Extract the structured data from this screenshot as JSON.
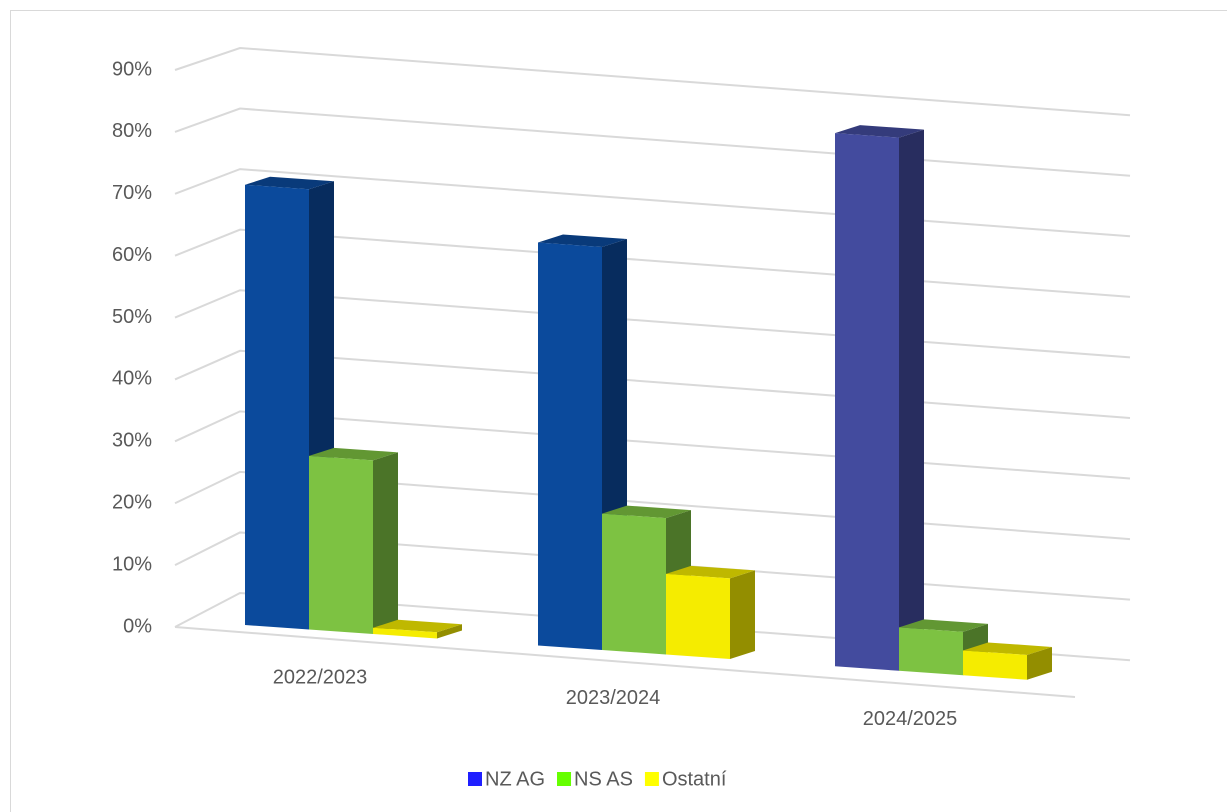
{
  "chart_data": {
    "type": "bar3d",
    "categories": [
      "2022/2023",
      "2023/2024",
      "2024/2025"
    ],
    "series": [
      {
        "name": "NZ AG",
        "color": "#1f1fff",
        "colors": [
          "#0b4a9c",
          "#0b4a9c",
          "#434b9e"
        ],
        "values": [
          71,
          65,
          86
        ]
      },
      {
        "name": "NS AS",
        "color": "#66ff00",
        "colors": [
          "#7dc242",
          "#7dc242",
          "#7dc242"
        ],
        "values": [
          28,
          22,
          7
        ]
      },
      {
        "name": "Ostatní",
        "color": "#ffff00",
        "colors": [
          "#f5ec00",
          "#f5ec00",
          "#f5ec00"
        ],
        "values": [
          1,
          13,
          4
        ]
      }
    ],
    "ylim": [
      0,
      90
    ],
    "yticks": [
      {
        "value": 0,
        "label": "0%"
      },
      {
        "value": 10,
        "label": "10%"
      },
      {
        "value": 20,
        "label": "20%"
      },
      {
        "value": 30,
        "label": "30%"
      },
      {
        "value": 40,
        "label": "40%"
      },
      {
        "value": 50,
        "label": "50%"
      },
      {
        "value": 60,
        "label": "60%"
      },
      {
        "value": 70,
        "label": "70%"
      },
      {
        "value": 80,
        "label": "80%"
      },
      {
        "value": 90,
        "label": "90%"
      }
    ],
    "grid": true,
    "legend": "bottom"
  }
}
